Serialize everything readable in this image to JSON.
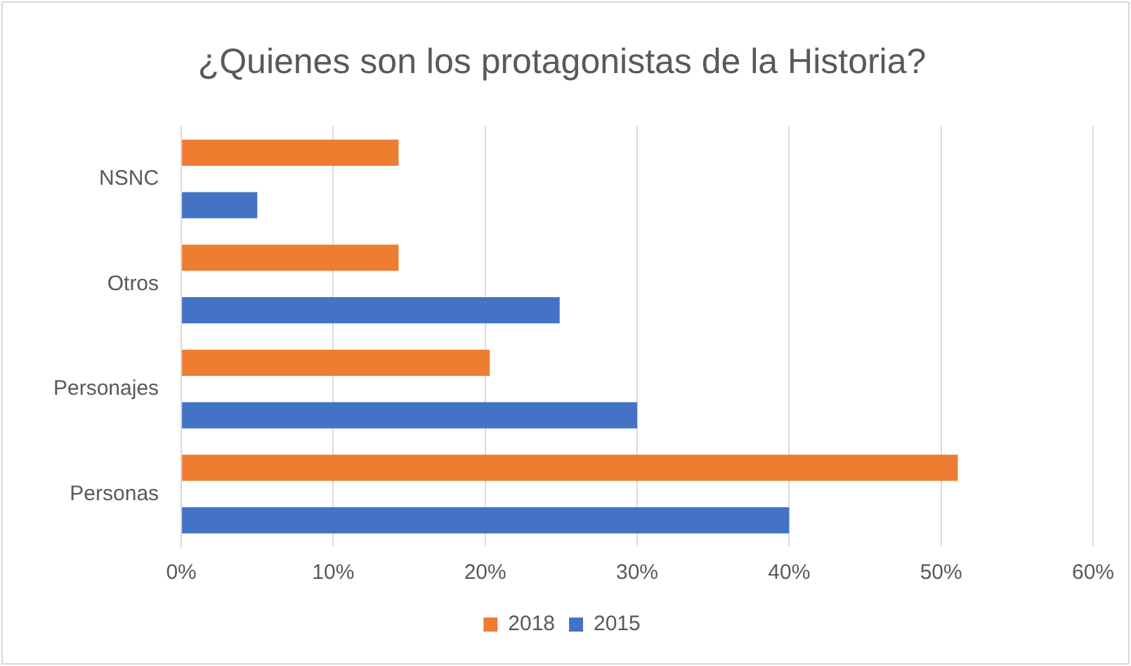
{
  "chart_data": {
    "type": "bar",
    "orientation": "horizontal",
    "title": "¿Quienes son los protagonistas de la Historia?",
    "categories": [
      "NSNC",
      "Otros",
      "Personajes",
      "Personas"
    ],
    "series": [
      {
        "name": "2018",
        "color": "#ed7d31",
        "values": [
          14.3,
          14.3,
          20.3,
          51.1
        ]
      },
      {
        "name": "2015",
        "color": "#4472c4",
        "values": [
          5,
          24.9,
          30,
          40
        ]
      }
    ],
    "xlim": [
      0,
      60
    ],
    "xticks": [
      {
        "value": 0,
        "label": "0%"
      },
      {
        "value": 10,
        "label": "10%"
      },
      {
        "value": 20,
        "label": "20%"
      },
      {
        "value": 30,
        "label": "30%"
      },
      {
        "value": 40,
        "label": "40%"
      },
      {
        "value": 50,
        "label": "50%"
      },
      {
        "value": 60,
        "label": "60%"
      }
    ],
    "grid": "x",
    "legend": "bottom"
  }
}
